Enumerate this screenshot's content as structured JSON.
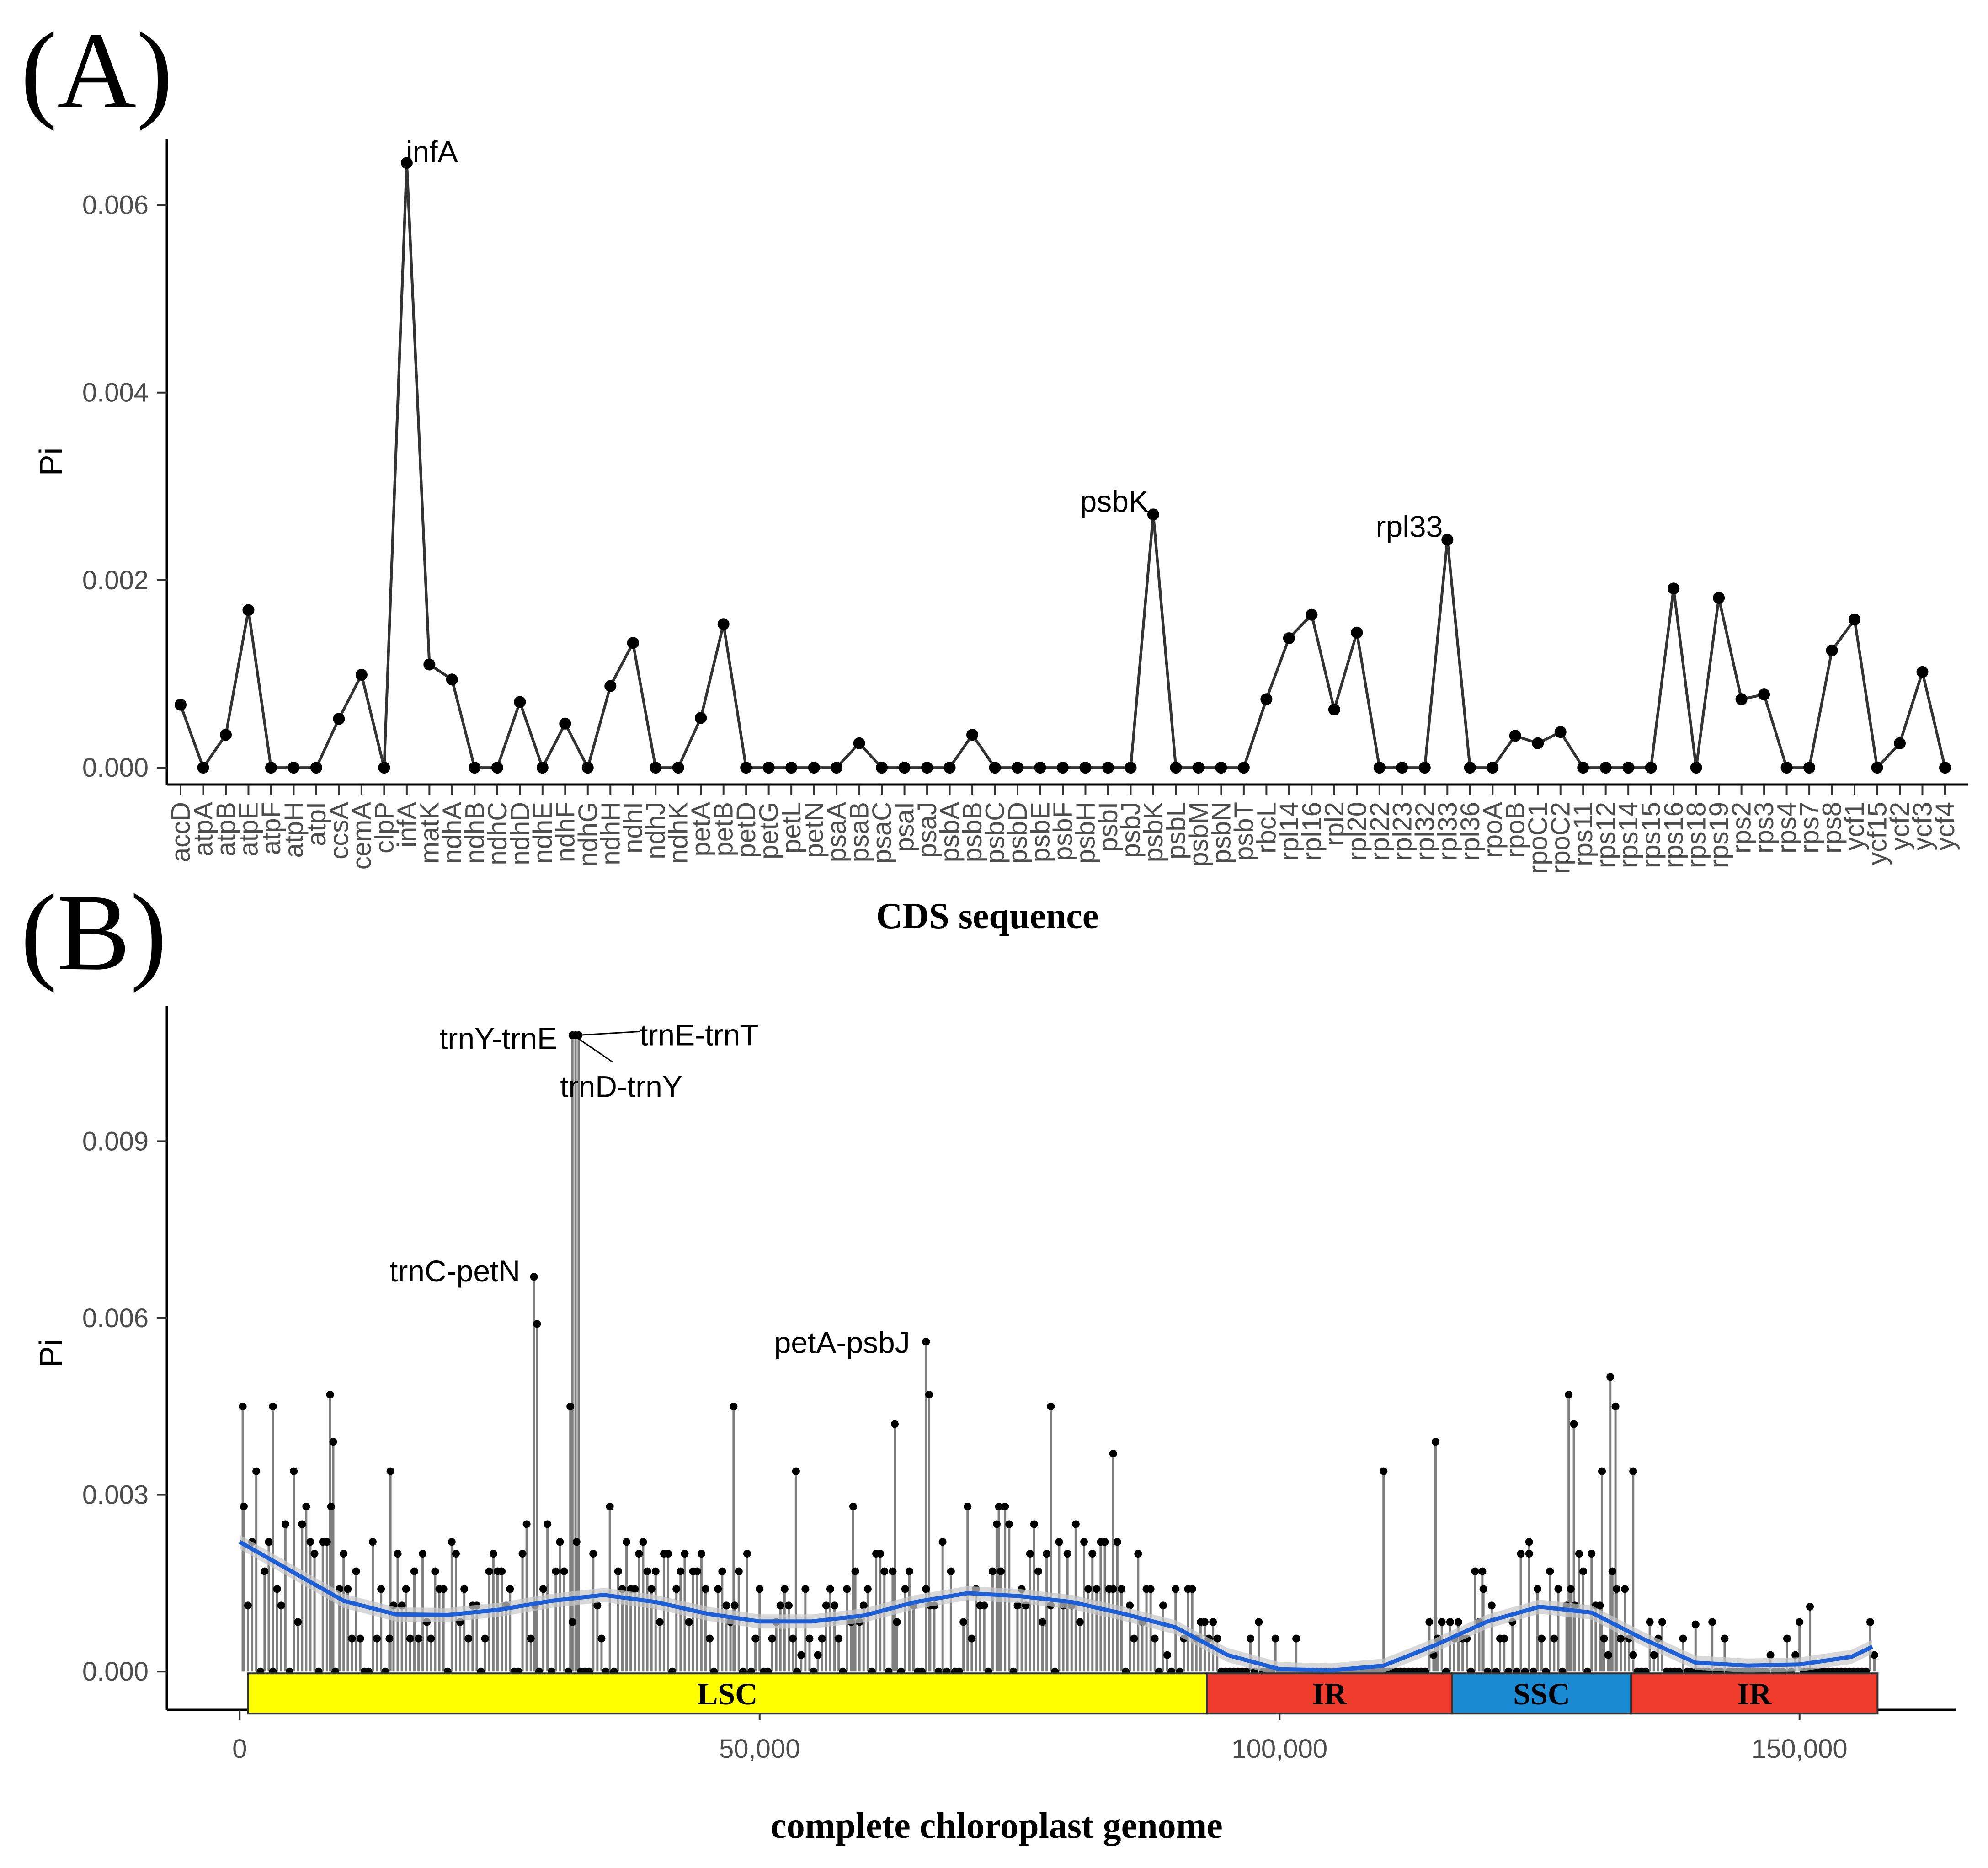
{
  "chart_data": [
    {
      "panel": "(A)",
      "type": "line",
      "title": "",
      "xlabel": "CDS sequence",
      "ylabel": "Pi",
      "ylim": [
        -0.00018,
        0.0067
      ],
      "yticks": [
        "0.000",
        "0.002",
        "0.004",
        "0.006"
      ],
      "ytick_values": [
        0,
        0.002,
        0.004,
        0.006
      ],
      "series_color": "#333333",
      "categories": [
        "accD",
        "atpA",
        "atpB",
        "atpE",
        "atpF",
        "atpH",
        "atpI",
        "ccsA",
        "cemA",
        "clpP",
        "infA",
        "matK",
        "ndhA",
        "ndhB",
        "ndhC",
        "ndhD",
        "ndhE",
        "ndhF",
        "ndhG",
        "ndhH",
        "ndhI",
        "ndhJ",
        "ndhK",
        "petA",
        "petB",
        "petD",
        "petG",
        "petL",
        "petN",
        "psaA",
        "psaB",
        "psaC",
        "psaI",
        "psaJ",
        "psbA",
        "psbB",
        "psbC",
        "psbD",
        "psbE",
        "psbF",
        "psbH",
        "psbI",
        "psbJ",
        "psbK",
        "psbL",
        "psbM",
        "psbN",
        "psbT",
        "rbcL",
        "rpl14",
        "rpl16",
        "rpl2",
        "rpl20",
        "rpl22",
        "rpl23",
        "rpl32",
        "rpl33",
        "rpl36",
        "rpoA",
        "rpoB",
        "rpoC1",
        "rpoC2",
        "rps11",
        "rps12",
        "rps14",
        "rps15",
        "rps16",
        "rps18",
        "rps19",
        "rps2",
        "rps3",
        "rps4",
        "rps7",
        "rps8",
        "ycf1",
        "ycf15",
        "ycf2",
        "ycf3",
        "ycf4"
      ],
      "points": [
        {
          "x": 1,
          "y": 0.00067
        },
        {
          "x": 2,
          "y": 0
        },
        {
          "x": 3,
          "y": 0.00035
        },
        {
          "x": 4,
          "y": 0.00168
        },
        {
          "x": 5,
          "y": 0
        },
        {
          "x": 6,
          "y": 0
        },
        {
          "x": 7,
          "y": 0
        },
        {
          "x": 8,
          "y": 0.00052
        },
        {
          "x": 9,
          "y": 0.00099
        },
        {
          "x": 10,
          "y": 0
        },
        {
          "x": 11,
          "y": 0.00645
        },
        {
          "x": 12,
          "y": 0.0011
        },
        {
          "x": 13,
          "y": 0.00094
        },
        {
          "x": 14,
          "y": 0
        },
        {
          "x": 15,
          "y": 0
        },
        {
          "x": 16,
          "y": 0.0007
        },
        {
          "x": 17,
          "y": 0
        },
        {
          "x": 18,
          "y": 0.00047
        },
        {
          "x": 19,
          "y": 0
        },
        {
          "x": 20,
          "y": 0.00087
        },
        {
          "x": 21,
          "y": 0.00133
        },
        {
          "x": 22,
          "y": 0
        },
        {
          "x": 23,
          "y": 0
        },
        {
          "x": 24,
          "y": 0.00053
        },
        {
          "x": 25,
          "y": 0.00153
        },
        {
          "x": 26,
          "y": 0
        },
        {
          "x": 27,
          "y": 0
        },
        {
          "x": 28,
          "y": 0
        },
        {
          "x": 29,
          "y": 0
        },
        {
          "x": 30,
          "y": 0
        },
        {
          "x": 31,
          "y": 0.00026
        },
        {
          "x": 32,
          "y": 0
        },
        {
          "x": 33,
          "y": 0
        },
        {
          "x": 34,
          "y": 0
        },
        {
          "x": 35,
          "y": 0
        },
        {
          "x": 36,
          "y": 0.00035
        },
        {
          "x": 37,
          "y": 0
        },
        {
          "x": 38,
          "y": 0
        },
        {
          "x": 39,
          "y": 0
        },
        {
          "x": 40,
          "y": 0
        },
        {
          "x": 41,
          "y": 0
        },
        {
          "x": 42,
          "y": 0
        },
        {
          "x": 43,
          "y": 0
        },
        {
          "x": 44,
          "y": 0.0027
        },
        {
          "x": 45,
          "y": 0
        },
        {
          "x": 46,
          "y": 0
        },
        {
          "x": 47,
          "y": 0
        },
        {
          "x": 48,
          "y": 0
        },
        {
          "x": 49,
          "y": 0.00073
        },
        {
          "x": 50,
          "y": 0.00138
        },
        {
          "x": 51,
          "y": 0.00163
        },
        {
          "x": 52,
          "y": 0.00062
        },
        {
          "x": 53,
          "y": 0.00144
        },
        {
          "x": 54,
          "y": 0
        },
        {
          "x": 55,
          "y": 0
        },
        {
          "x": 56,
          "y": 0
        },
        {
          "x": 57,
          "y": 0.00243
        },
        {
          "x": 58,
          "y": 0
        },
        {
          "x": 59,
          "y": 0
        },
        {
          "x": 60,
          "y": 0.00034
        },
        {
          "x": 61,
          "y": 0.00026
        },
        {
          "x": 62,
          "y": 0.00038
        },
        {
          "x": 63,
          "y": 0
        },
        {
          "x": 64,
          "y": 0
        },
        {
          "x": 65,
          "y": 0
        },
        {
          "x": 66,
          "y": 0
        },
        {
          "x": 67,
          "y": 0.00191
        },
        {
          "x": 68,
          "y": 0
        },
        {
          "x": 69,
          "y": 0.00181
        },
        {
          "x": 70,
          "y": 0.00073
        },
        {
          "x": 71,
          "y": 0.00078
        },
        {
          "x": 72,
          "y": 0
        },
        {
          "x": 73,
          "y": 0
        },
        {
          "x": 74,
          "y": 0.00125
        },
        {
          "x": 75,
          "y": 0.00158
        },
        {
          "x": 76,
          "y": 0
        },
        {
          "x": 77,
          "y": 0.00026
        },
        {
          "x": 78,
          "y": 0.00102
        },
        {
          "x": 79,
          "y": 0
        }
      ],
      "annotations": [
        {
          "label": "infA",
          "category": "infA"
        },
        {
          "label": "psbK",
          "category": "psbK"
        },
        {
          "label": "rpl33",
          "category": "rpl33"
        }
      ]
    },
    {
      "panel": "(B)",
      "type": "line",
      "title": "",
      "xlabel": "complete chloroplast genome",
      "ylabel": "Pi",
      "xlim": [
        -7000,
        165000
      ],
      "ylim": [
        -0.00065,
        0.0113
      ],
      "xticks": [
        "0",
        "50,000",
        "100,000",
        "150,000"
      ],
      "xtick_values": [
        0,
        50000,
        100000,
        150000
      ],
      "yticks": [
        "0.000",
        "0.003",
        "0.006",
        "0.009"
      ],
      "ytick_values": [
        0,
        0.003,
        0.006,
        0.009
      ],
      "series": [
        {
          "name": "Pi (sliding window)",
          "color": "#7f7f7f",
          "marker_color": "#000000"
        },
        {
          "name": "smooth trend",
          "color": "#1f5fd6",
          "ci_color": "#c8c8c8"
        }
      ],
      "trend": [
        {
          "x": 0,
          "y": 0.0022
        },
        {
          "x": 5000,
          "y": 0.0017
        },
        {
          "x": 10000,
          "y": 0.0012
        },
        {
          "x": 15000,
          "y": 0.00097
        },
        {
          "x": 20000,
          "y": 0.00096
        },
        {
          "x": 25000,
          "y": 0.00105
        },
        {
          "x": 30000,
          "y": 0.0012
        },
        {
          "x": 35000,
          "y": 0.0013
        },
        {
          "x": 40000,
          "y": 0.00118
        },
        {
          "x": 45000,
          "y": 0.00098
        },
        {
          "x": 50000,
          "y": 0.00085
        },
        {
          "x": 55000,
          "y": 0.00085
        },
        {
          "x": 60000,
          "y": 0.00095
        },
        {
          "x": 65000,
          "y": 0.00118
        },
        {
          "x": 70000,
          "y": 0.00133
        },
        {
          "x": 75000,
          "y": 0.00128
        },
        {
          "x": 80000,
          "y": 0.00118
        },
        {
          "x": 85000,
          "y": 0.00098
        },
        {
          "x": 90000,
          "y": 0.00075
        },
        {
          "x": 95000,
          "y": 0.00028
        },
        {
          "x": 100000,
          "y": 4e-05
        },
        {
          "x": 105000,
          "y": 2e-05
        },
        {
          "x": 110000,
          "y": 0.0001
        },
        {
          "x": 115000,
          "y": 0.00045
        },
        {
          "x": 120000,
          "y": 0.00085
        },
        {
          "x": 125000,
          "y": 0.0011
        },
        {
          "x": 130000,
          "y": 0.001
        },
        {
          "x": 135000,
          "y": 0.00055
        },
        {
          "x": 140000,
          "y": 0.00015
        },
        {
          "x": 145000,
          "y": 0.0001
        },
        {
          "x": 150000,
          "y": 0.00012
        },
        {
          "x": 155000,
          "y": 0.00025
        },
        {
          "x": 157000,
          "y": 0.00042
        }
      ],
      "key_points": [
        {
          "x": 32000,
          "y": 0.0108,
          "label": "trnY-trnE"
        },
        {
          "x": 32300,
          "y": 0.0108,
          "label": "trnE-trnT"
        },
        {
          "x": 32600,
          "y": 0.0108,
          "label": "trnD-trnY"
        },
        {
          "x": 28300,
          "y": 0.0067,
          "label": "trnC-petN"
        },
        {
          "x": 66000,
          "y": 0.0056,
          "label": "petA-psbJ"
        }
      ],
      "regions": [
        {
          "label": "LSC",
          "start": 800,
          "end": 93000,
          "color": "#ffff00"
        },
        {
          "label": "IR",
          "start": 93000,
          "end": 116600,
          "color": "#f03c2c"
        },
        {
          "label": "SSC",
          "start": 116600,
          "end": 133800,
          "color": "#1a8ad4"
        },
        {
          "label": "IR",
          "start": 133800,
          "end": 157500,
          "color": "#f03c2c"
        }
      ]
    }
  ],
  "genome_track_seed": 17
}
